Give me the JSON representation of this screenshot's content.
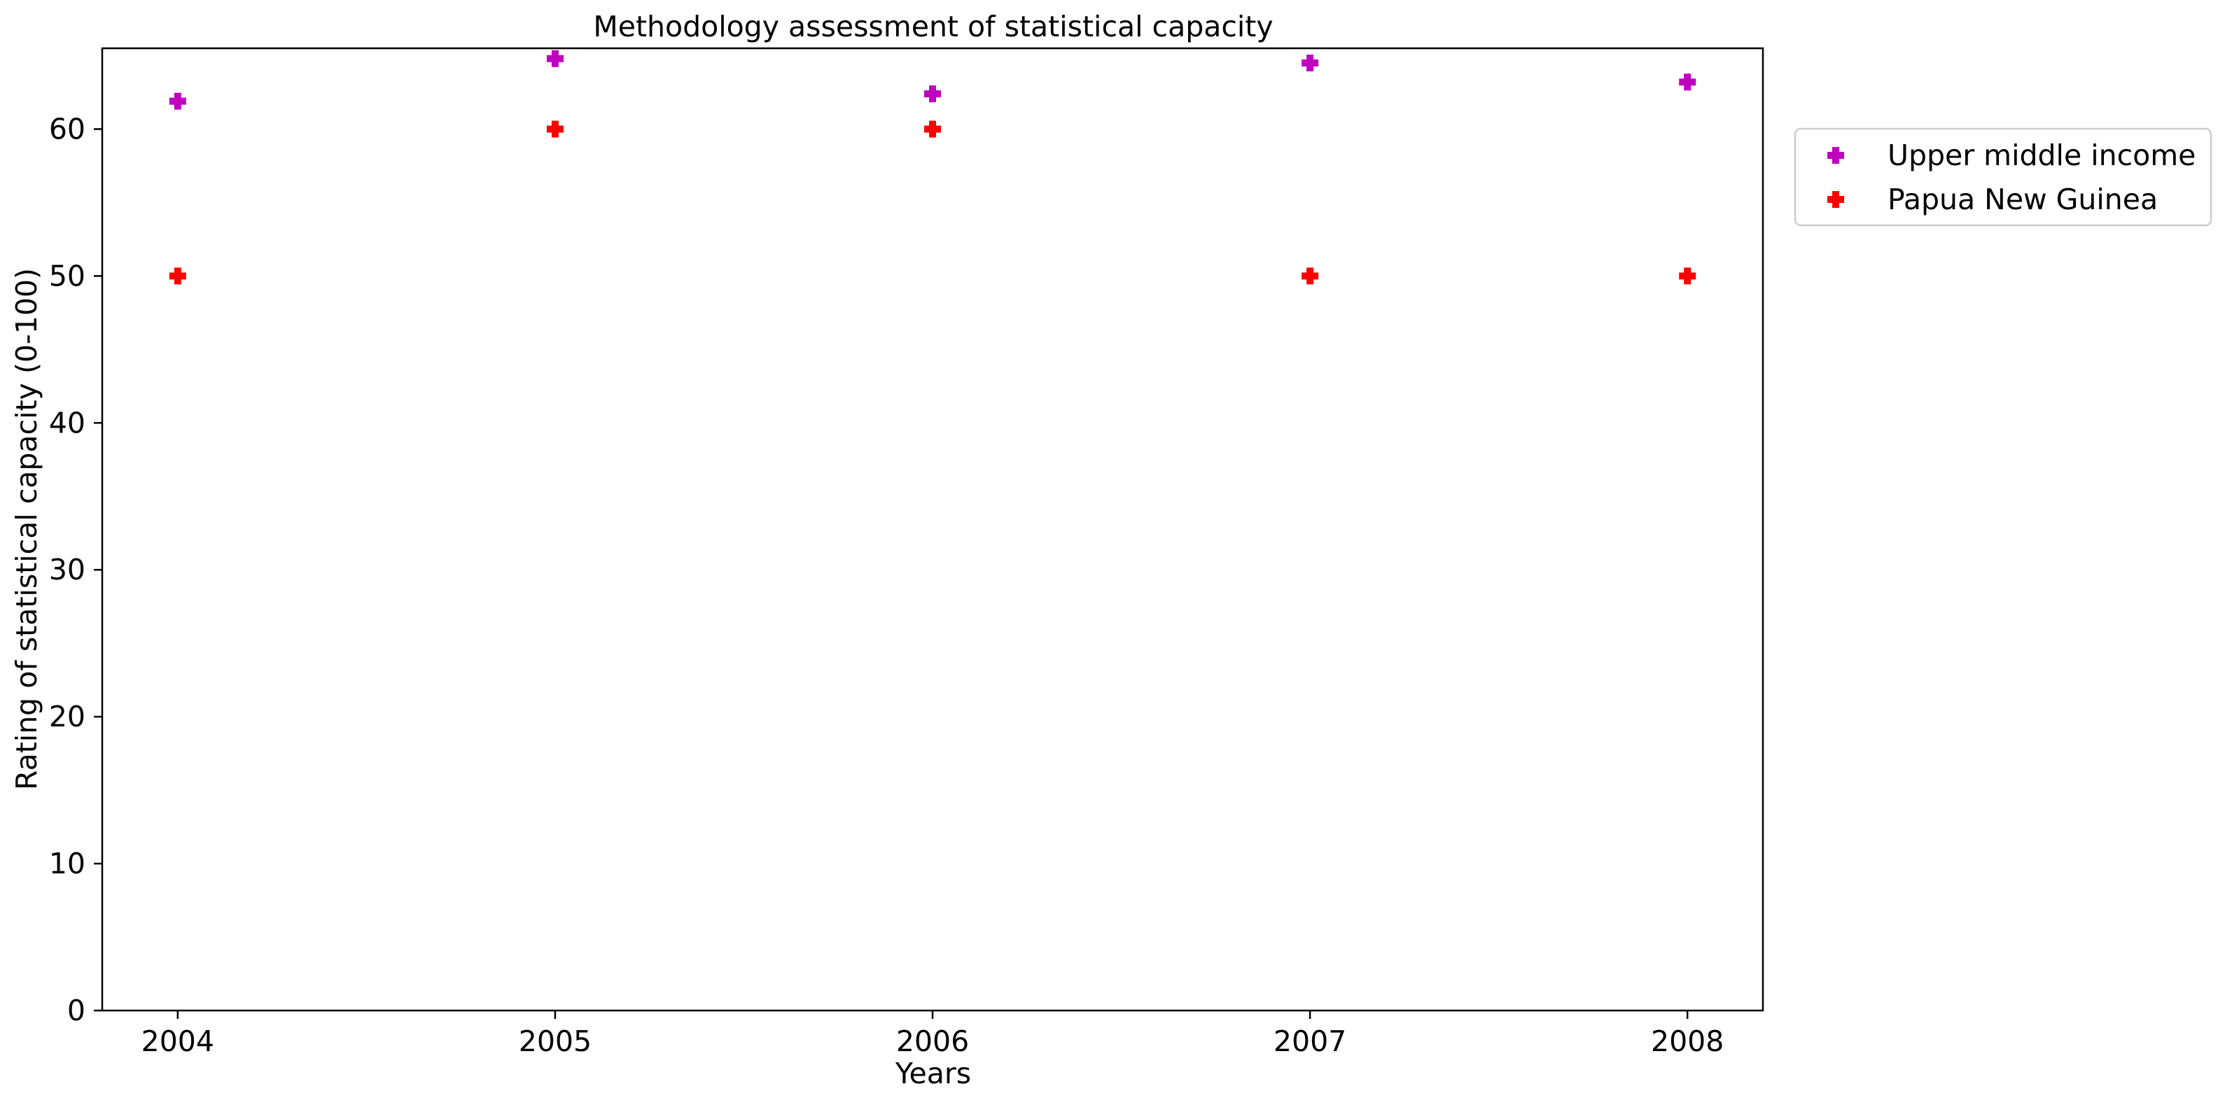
{
  "chart_data": {
    "type": "scatter",
    "title": "Methodology assessment of statistical capacity",
    "xlabel": "Years",
    "ylabel": "Rating of statistical capacity (0-100)",
    "x": [
      2004,
      2005,
      2006,
      2007,
      2008
    ],
    "x_ticks": [
      "2004",
      "2005",
      "2006",
      "2007",
      "2008"
    ],
    "xlim": [
      2003.8,
      2008.2
    ],
    "ylim": [
      0,
      65.5
    ],
    "y_ticks": [
      "0",
      "10",
      "20",
      "30",
      "40",
      "50",
      "60"
    ],
    "grid": false,
    "legend_position": "outside-right-top",
    "marker": "plus-filled",
    "series": [
      {
        "name": "Upper middle income",
        "color": "#bf00bf",
        "values": [
          61.9,
          64.8,
          62.4,
          64.5,
          63.2
        ]
      },
      {
        "name": "Papua New Guinea",
        "color": "#ff0000",
        "values": [
          50,
          60,
          60,
          50,
          50
        ]
      }
    ]
  }
}
